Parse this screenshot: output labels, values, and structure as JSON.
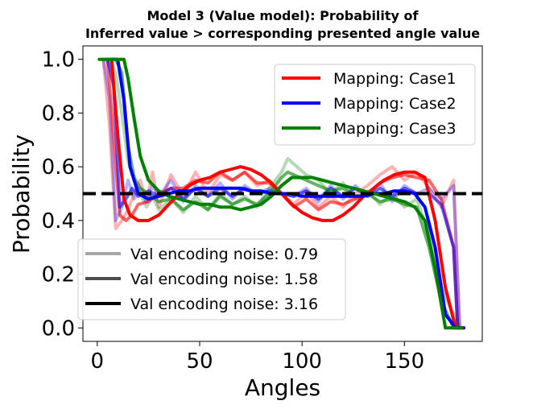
{
  "chart_data": {
    "type": "line",
    "title_line1": "Model 3 (Value model): Probability of",
    "title_line2": "Inferred value > corresponding presented angle value",
    "xlabel": "Angles",
    "ylabel": "Probability",
    "xlim": [
      -7,
      188
    ],
    "ylim": [
      -0.05,
      1.05
    ],
    "xticks": [
      0,
      50,
      100,
      150
    ],
    "yticks": [
      0.0,
      0.2,
      0.4,
      0.6,
      0.8,
      1.0
    ],
    "xtick_labels": [
      "0",
      "50",
      "100",
      "150"
    ],
    "ytick_labels": [
      "0.0",
      "0.2",
      "0.4",
      "0.6",
      "0.8",
      "1.0"
    ],
    "grid": false,
    "reference_line": {
      "y": 0.5,
      "style": "dashed",
      "color": "#000000"
    },
    "mapping_legend": {
      "placement": "upper right",
      "entries": [
        {
          "label": "Mapping: Case1",
          "color": "#ff0000"
        },
        {
          "label": "Mapping: Case2",
          "color": "#0000ff"
        },
        {
          "label": "Mapping: Case3",
          "color": "#008000"
        }
      ]
    },
    "noise_legend": {
      "placement": "lower left",
      "entries": [
        {
          "label": "Val encoding noise: 0.79",
          "color": "#a6a6a6"
        },
        {
          "label": "Val encoding noise: 1.58",
          "color": "#4d4d4d"
        },
        {
          "label": "Val encoding noise: 3.16",
          "color": "#000000"
        }
      ]
    },
    "series": [
      {
        "mapping": "Case1",
        "noise": 0.79,
        "color": "#ff0000",
        "opacity": 0.3,
        "x": [
          3,
          6,
          9,
          12,
          15,
          18,
          21,
          24,
          27,
          30,
          36,
          42,
          48,
          54,
          60,
          66,
          72,
          78,
          84,
          90,
          96,
          102,
          108,
          114,
          120,
          126,
          132,
          138,
          144,
          150,
          156,
          162,
          168,
          174,
          177
        ],
        "y": [
          1.0,
          0.75,
          0.37,
          0.4,
          0.44,
          0.5,
          0.55,
          0.47,
          0.58,
          0.45,
          0.57,
          0.49,
          0.58,
          0.5,
          0.57,
          0.55,
          0.58,
          0.53,
          0.55,
          0.5,
          0.46,
          0.51,
          0.45,
          0.49,
          0.45,
          0.5,
          0.53,
          0.57,
          0.6,
          0.55,
          0.58,
          0.52,
          0.45,
          0.55,
          0.0
        ]
      },
      {
        "mapping": "Case2",
        "noise": 0.79,
        "color": "#0000ff",
        "opacity": 0.3,
        "x": [
          3,
          6,
          9,
          12,
          15,
          18,
          21,
          24,
          27,
          30,
          36,
          42,
          48,
          54,
          60,
          66,
          72,
          78,
          84,
          90,
          96,
          102,
          108,
          114,
          120,
          126,
          132,
          138,
          144,
          150,
          156,
          162,
          168,
          174,
          177
        ],
        "y": [
          1.0,
          0.85,
          0.4,
          0.45,
          0.55,
          0.48,
          0.52,
          0.47,
          0.53,
          0.49,
          0.55,
          0.47,
          0.53,
          0.49,
          0.54,
          0.48,
          0.53,
          0.5,
          0.52,
          0.5,
          0.49,
          0.52,
          0.47,
          0.53,
          0.48,
          0.53,
          0.49,
          0.54,
          0.47,
          0.53,
          0.5,
          0.52,
          0.48,
          0.53,
          0.0
        ]
      },
      {
        "mapping": "Case3",
        "noise": 0.79,
        "color": "#008000",
        "opacity": 0.3,
        "x": [
          3,
          6,
          9,
          12,
          15,
          18,
          21,
          24,
          27,
          30,
          36,
          42,
          48,
          54,
          60,
          66,
          72,
          78,
          84,
          90,
          93,
          96,
          102,
          108,
          114,
          120,
          126,
          132,
          138,
          144,
          150,
          156,
          162,
          168,
          174,
          177
        ],
        "y": [
          1.0,
          1.0,
          0.95,
          0.8,
          0.62,
          0.55,
          0.5,
          0.45,
          0.49,
          0.44,
          0.48,
          0.43,
          0.49,
          0.44,
          0.5,
          0.46,
          0.49,
          0.45,
          0.52,
          0.58,
          0.63,
          0.61,
          0.57,
          0.55,
          0.5,
          0.54,
          0.48,
          0.51,
          0.46,
          0.5,
          0.45,
          0.48,
          0.35,
          0.15,
          0.05,
          0.0
        ]
      },
      {
        "mapping": "Case1",
        "noise": 1.58,
        "color": "#ff0000",
        "opacity": 0.6,
        "x": [
          5,
          8,
          11,
          14,
          17,
          20,
          25,
          30,
          36,
          42,
          48,
          54,
          60,
          66,
          72,
          78,
          84,
          90,
          96,
          102,
          108,
          114,
          120,
          126,
          132,
          138,
          144,
          150,
          156,
          162,
          168,
          174,
          176
        ],
        "y": [
          1.0,
          0.7,
          0.42,
          0.4,
          0.42,
          0.46,
          0.47,
          0.5,
          0.52,
          0.52,
          0.55,
          0.54,
          0.58,
          0.55,
          0.58,
          0.54,
          0.54,
          0.5,
          0.45,
          0.48,
          0.44,
          0.47,
          0.46,
          0.48,
          0.5,
          0.54,
          0.56,
          0.57,
          0.56,
          0.55,
          0.48,
          0.3,
          0.0
        ]
      },
      {
        "mapping": "Case2",
        "noise": 1.58,
        "color": "#0000ff",
        "opacity": 0.6,
        "x": [
          5,
          8,
          11,
          14,
          17,
          20,
          25,
          30,
          36,
          42,
          48,
          54,
          60,
          66,
          72,
          78,
          84,
          90,
          96,
          102,
          108,
          114,
          120,
          126,
          132,
          138,
          144,
          150,
          156,
          162,
          168,
          174,
          176
        ],
        "y": [
          1.0,
          0.9,
          0.45,
          0.48,
          0.52,
          0.49,
          0.51,
          0.49,
          0.52,
          0.48,
          0.52,
          0.49,
          0.52,
          0.49,
          0.52,
          0.5,
          0.51,
          0.5,
          0.49,
          0.51,
          0.48,
          0.52,
          0.49,
          0.52,
          0.49,
          0.52,
          0.49,
          0.52,
          0.5,
          0.5,
          0.46,
          0.3,
          0.0
        ]
      },
      {
        "mapping": "Case3",
        "noise": 1.58,
        "color": "#008000",
        "opacity": 0.6,
        "x": [
          5,
          9,
          12,
          15,
          18,
          21,
          25,
          30,
          36,
          42,
          48,
          54,
          60,
          66,
          72,
          78,
          84,
          90,
          93,
          96,
          102,
          108,
          114,
          120,
          126,
          132,
          138,
          144,
          150,
          156,
          162,
          168,
          174,
          176
        ],
        "y": [
          1.0,
          1.0,
          0.95,
          0.68,
          0.56,
          0.52,
          0.5,
          0.47,
          0.48,
          0.44,
          0.47,
          0.44,
          0.49,
          0.46,
          0.48,
          0.46,
          0.5,
          0.56,
          0.58,
          0.57,
          0.55,
          0.53,
          0.51,
          0.52,
          0.49,
          0.5,
          0.47,
          0.48,
          0.46,
          0.45,
          0.3,
          0.1,
          0.0,
          0.0
        ]
      },
      {
        "mapping": "Case1",
        "noise": 3.16,
        "color": "#ff0000",
        "opacity": 1.0,
        "x": [
          7,
          10,
          13,
          16,
          20,
          25,
          30,
          35,
          40,
          45,
          50,
          55,
          60,
          65,
          70,
          75,
          80,
          85,
          90,
          95,
          100,
          105,
          110,
          115,
          120,
          125,
          130,
          135,
          140,
          145,
          150,
          155,
          160,
          165,
          170,
          175,
          179
        ],
        "y": [
          1.0,
          0.72,
          0.48,
          0.42,
          0.4,
          0.4,
          0.42,
          0.46,
          0.5,
          0.53,
          0.55,
          0.56,
          0.58,
          0.59,
          0.6,
          0.59,
          0.57,
          0.54,
          0.5,
          0.46,
          0.43,
          0.41,
          0.4,
          0.4,
          0.42,
          0.45,
          0.49,
          0.52,
          0.55,
          0.57,
          0.58,
          0.58,
          0.56,
          0.4,
          0.15,
          0.0,
          0.0
        ]
      },
      {
        "mapping": "Case2",
        "noise": 3.16,
        "color": "#0000ff",
        "opacity": 1.0,
        "x": [
          7,
          10,
          13,
          16,
          20,
          25,
          30,
          35,
          40,
          45,
          50,
          55,
          60,
          65,
          70,
          75,
          80,
          85,
          90,
          95,
          100,
          105,
          110,
          115,
          120,
          125,
          130,
          135,
          140,
          145,
          150,
          155,
          160,
          165,
          170,
          175,
          179
        ],
        "y": [
          1.0,
          1.0,
          0.85,
          0.6,
          0.5,
          0.48,
          0.49,
          0.5,
          0.51,
          0.51,
          0.52,
          0.52,
          0.52,
          0.52,
          0.52,
          0.51,
          0.51,
          0.5,
          0.5,
          0.5,
          0.49,
          0.49,
          0.49,
          0.49,
          0.49,
          0.49,
          0.49,
          0.5,
          0.5,
          0.51,
          0.51,
          0.5,
          0.45,
          0.3,
          0.05,
          0.0,
          0.0
        ]
      },
      {
        "mapping": "Case3",
        "noise": 3.16,
        "color": "#008000",
        "opacity": 1.0,
        "x": [
          1,
          5,
          9,
          13,
          15,
          18,
          21,
          25,
          30,
          35,
          40,
          45,
          50,
          55,
          60,
          65,
          70,
          75,
          80,
          85,
          90,
          95,
          100,
          105,
          110,
          115,
          120,
          125,
          130,
          135,
          140,
          145,
          150,
          155,
          160,
          165,
          170,
          175,
          178
        ],
        "y": [
          1.0,
          1.0,
          1.0,
          1.0,
          0.93,
          0.78,
          0.64,
          0.55,
          0.51,
          0.49,
          0.48,
          0.47,
          0.46,
          0.46,
          0.45,
          0.45,
          0.44,
          0.45,
          0.46,
          0.49,
          0.53,
          0.56,
          0.56,
          0.56,
          0.55,
          0.54,
          0.53,
          0.52,
          0.51,
          0.5,
          0.49,
          0.48,
          0.47,
          0.45,
          0.4,
          0.22,
          0.0,
          0.0,
          0.0
        ]
      }
    ]
  }
}
